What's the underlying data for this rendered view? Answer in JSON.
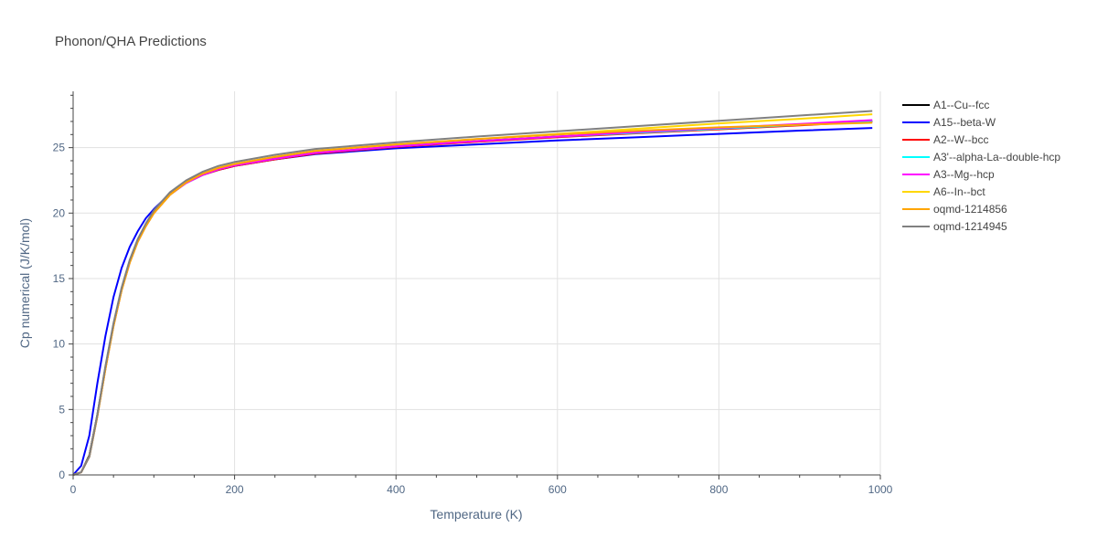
{
  "chart_data": {
    "type": "line",
    "title": "Phonon/QHA Predictions",
    "xlabel": "Temperature (K)",
    "ylabel": "Cp numerical (J/K/mol)",
    "xlim": [
      0,
      1000
    ],
    "ylim": [
      0,
      29.3
    ],
    "xticks": [
      0,
      200,
      400,
      600,
      800,
      1000
    ],
    "yticks": [
      0,
      5,
      10,
      15,
      20,
      25
    ],
    "grid": true,
    "legend_position": "right",
    "x": [
      0,
      10,
      20,
      30,
      40,
      50,
      60,
      70,
      80,
      90,
      100,
      120,
      140,
      160,
      180,
      200,
      250,
      300,
      400,
      500,
      600,
      700,
      800,
      900,
      990
    ],
    "series": [
      {
        "name": "A1--Cu--fcc",
        "color": "#000000",
        "values": [
          0,
          0.2,
          1.5,
          4.6,
          8.2,
          11.5,
          14.2,
          16.3,
          17.9,
          19.1,
          20.1,
          21.5,
          22.4,
          23.0,
          23.4,
          23.7,
          24.2,
          24.6,
          25.1,
          25.5,
          25.85,
          26.15,
          26.45,
          26.75,
          27.0
        ]
      },
      {
        "name": "A15--beta-W",
        "color": "#0000ff",
        "values": [
          0,
          0.7,
          3.0,
          7.0,
          10.6,
          13.6,
          15.8,
          17.4,
          18.6,
          19.6,
          20.3,
          21.5,
          22.3,
          22.9,
          23.3,
          23.6,
          24.1,
          24.5,
          24.95,
          25.25,
          25.55,
          25.8,
          26.05,
          26.3,
          26.5
        ]
      },
      {
        "name": "A2--W--bcc",
        "color": "#ff0000",
        "values": [
          0,
          0.2,
          1.4,
          4.5,
          8.1,
          11.4,
          14.1,
          16.2,
          17.8,
          19.0,
          20.0,
          21.4,
          22.3,
          22.9,
          23.3,
          23.6,
          24.1,
          24.55,
          25.05,
          25.45,
          25.8,
          26.1,
          26.4,
          26.7,
          27.0
        ]
      },
      {
        "name": "A3'--alpha-La--double-hcp",
        "color": "#00ffff",
        "values": [
          0,
          0.2,
          1.4,
          4.5,
          8.1,
          11.4,
          14.1,
          16.2,
          17.8,
          19.0,
          20.0,
          21.4,
          22.3,
          22.9,
          23.35,
          23.65,
          24.15,
          24.6,
          25.1,
          25.5,
          25.85,
          26.15,
          26.45,
          26.75,
          27.05
        ]
      },
      {
        "name": "A3--Mg--hcp",
        "color": "#ff00ff",
        "values": [
          0,
          0.2,
          1.4,
          4.5,
          8.1,
          11.4,
          14.1,
          16.2,
          17.8,
          19.0,
          20.0,
          21.4,
          22.3,
          22.9,
          23.35,
          23.65,
          24.15,
          24.6,
          25.1,
          25.5,
          25.85,
          26.2,
          26.5,
          26.8,
          27.1
        ]
      },
      {
        "name": "A6--In--bct",
        "color": "#ffd700",
        "values": [
          0,
          0.2,
          1.4,
          4.5,
          8.1,
          11.4,
          14.1,
          16.2,
          17.8,
          19.0,
          20.0,
          21.4,
          22.35,
          23.0,
          23.45,
          23.75,
          24.3,
          24.75,
          25.25,
          25.65,
          26.05,
          26.45,
          26.85,
          27.2,
          27.55
        ]
      },
      {
        "name": "oqmd-1214856",
        "color": "#ffa500",
        "values": [
          0,
          0.2,
          1.4,
          4.5,
          8.1,
          11.4,
          14.1,
          16.2,
          17.8,
          19.0,
          20.0,
          21.4,
          22.35,
          23.0,
          23.45,
          23.75,
          24.3,
          24.75,
          25.25,
          25.65,
          26.0,
          26.3,
          26.55,
          26.75,
          26.9
        ]
      },
      {
        "name": "oqmd-1214945",
        "color": "#808080",
        "values": [
          0,
          0.2,
          1.4,
          4.6,
          8.3,
          11.6,
          14.3,
          16.4,
          18.0,
          19.2,
          20.2,
          21.6,
          22.5,
          23.15,
          23.6,
          23.9,
          24.45,
          24.9,
          25.4,
          25.85,
          26.25,
          26.65,
          27.05,
          27.45,
          27.8
        ]
      }
    ]
  }
}
